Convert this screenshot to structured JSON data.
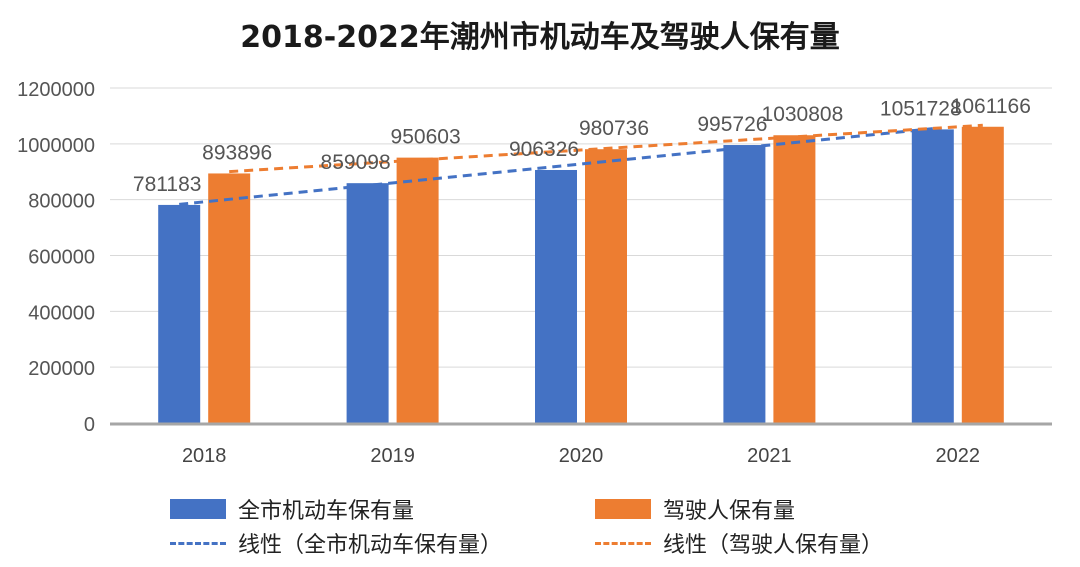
{
  "chart_data": {
    "type": "bar",
    "title": "2018-2022年潮州市机动车及驾驶人保有量",
    "categories": [
      "2018",
      "2019",
      "2020",
      "2021",
      "2022"
    ],
    "series": [
      {
        "name": "全市机动车保有量",
        "values": [
          781183,
          859098,
          906326,
          995726,
          1051728
        ],
        "color": "#4472C4"
      },
      {
        "name": "驾驶人保有量",
        "values": [
          893896,
          950603,
          980736,
          1030808,
          1061166
        ],
        "color": "#ED7D31"
      }
    ],
    "trendlines": [
      {
        "name": "线性（全市机动车保有量）",
        "series": 0,
        "type": "linear",
        "color": "#4472C4"
      },
      {
        "name": "线性（驾驶人保有量）",
        "series": 1,
        "type": "linear",
        "color": "#ED7D31"
      }
    ],
    "yticks": [
      "0",
      "200000",
      "400000",
      "600000",
      "800000",
      "1000000",
      "1200000"
    ],
    "ylim": [
      0,
      1200000
    ],
    "grid": true,
    "legend": "bottom"
  }
}
